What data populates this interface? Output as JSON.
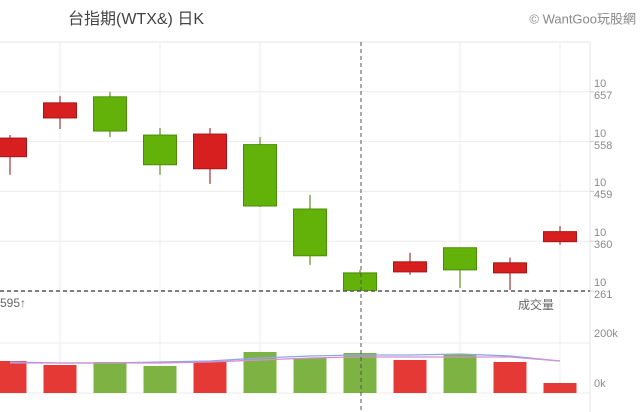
{
  "chart_data": {
    "type": "candlestick",
    "title": "台指期(WTX&) 日K",
    "credit": "© WantGoo玩股網",
    "categories": [
      null,
      null,
      null,
      null,
      null,
      null,
      null,
      null,
      null,
      null,
      null,
      null
    ],
    "open": [
      10528,
      10605,
      10647,
      10571,
      10504,
      10552,
      10424,
      10297,
      10299,
      10347,
      10297,
      10359
    ],
    "high": [
      10571,
      10649,
      10657,
      10585,
      10585,
      10567,
      10452,
      10303,
      10337,
      10347,
      10327,
      10390
    ],
    "low": [
      10492,
      10583,
      10567,
      10492,
      10474,
      10428,
      10313,
      10261,
      10293,
      10267,
      10263,
      10353
    ],
    "close": [
      10565,
      10635,
      10579,
      10512,
      10573,
      10430,
      10331,
      10261,
      10319,
      10303,
      10317,
      10379
    ],
    "up_color": "#d71f1f",
    "down_color": "#62b20a",
    "ylim": [
      10261,
      10756
    ],
    "yticks": [
      {
        "value": 10657,
        "label": "10\n657"
      },
      {
        "value": 10558,
        "label": "10\n558"
      },
      {
        "value": 10459,
        "label": "10\n459"
      },
      {
        "value": 10360,
        "label": "10\n360"
      },
      {
        "value": 10261,
        "label": "10\n261"
      }
    ],
    "volume": {
      "label": "成交量",
      "marker": "595↑",
      "values": [
        128000,
        112000,
        124000,
        108000,
        128000,
        164000,
        140000,
        160000,
        132000,
        156000,
        124000,
        40000
      ],
      "up_color": "#e53935",
      "down_color": "#7cb342",
      "lines": [
        {
          "color": "#8ea6e8",
          "values": [
            124000,
            120000,
            120000,
            124000,
            128000,
            140000,
            148000,
            152000,
            152000,
            156000,
            148000,
            128000
          ]
        },
        {
          "color": "#d58fd0",
          "values": [
            120000,
            120000,
            120000,
            120000,
            124000,
            132000,
            140000,
            144000,
            144000,
            144000,
            144000,
            128000
          ]
        }
      ],
      "y2lim": [
        0,
        408000
      ],
      "y2ticks": [
        {
          "value": 200000,
          "label": "200k"
        },
        {
          "value": 0,
          "label": "0k"
        }
      ]
    },
    "grid": true
  }
}
